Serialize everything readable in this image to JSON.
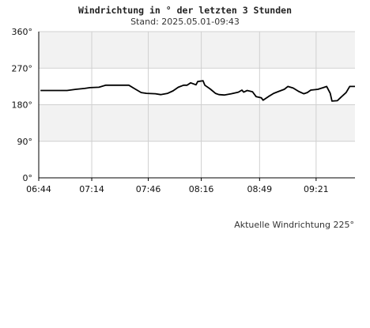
{
  "title": "Windrichtung in ° der letzten 3 Stunden",
  "subtitle": "Stand: 2025.05.01-09:43",
  "current_label": "Aktuelle Windrichtung 225°",
  "colors": {
    "band": "#f2f2f2",
    "grid": "#d0d0d0",
    "line": "#000000",
    "axis": "#000000"
  },
  "chart_data": {
    "type": "line",
    "title": "Windrichtung in ° der letzten 3 Stunden",
    "subtitle": "Stand: 2025.05.01-09:43",
    "ylim": [
      0,
      360
    ],
    "xlim": [
      "06:44",
      "09:43"
    ],
    "y_ticks": [
      0,
      90,
      180,
      270,
      360
    ],
    "y_tick_labels": [
      "0°",
      "90°",
      "180°",
      "270°",
      "360°"
    ],
    "x_tick_labels": [
      "06:44",
      "07:14",
      "07:46",
      "08:16",
      "08:49",
      "09:21"
    ],
    "grid": true,
    "series": [
      {
        "values": [
          [
            "06:45",
            215
          ],
          [
            "06:50",
            215
          ],
          [
            "06:55",
            215
          ],
          [
            "07:00",
            215
          ],
          [
            "07:05",
            218
          ],
          [
            "07:10",
            220
          ],
          [
            "07:13",
            222
          ],
          [
            "07:18",
            223
          ],
          [
            "07:22",
            228
          ],
          [
            "07:26",
            228
          ],
          [
            "07:30",
            228
          ],
          [
            "07:35",
            228
          ],
          [
            "07:38",
            220
          ],
          [
            "07:42",
            210
          ],
          [
            "07:45",
            208
          ],
          [
            "07:50",
            207
          ],
          [
            "07:53",
            205
          ],
          [
            "07:57",
            208
          ],
          [
            "08:00",
            214
          ],
          [
            "08:03",
            223
          ],
          [
            "08:06",
            228
          ],
          [
            "08:08",
            228
          ],
          [
            "08:10",
            234
          ],
          [
            "08:13",
            229
          ],
          [
            "08:14",
            237
          ],
          [
            "08:17",
            239
          ],
          [
            "08:18",
            228
          ],
          [
            "08:21",
            219
          ],
          [
            "08:24",
            208
          ],
          [
            "08:26",
            205
          ],
          [
            "08:29",
            204
          ],
          [
            "08:33",
            207
          ],
          [
            "08:37",
            211
          ],
          [
            "08:39",
            216
          ],
          [
            "08:40",
            211
          ],
          [
            "08:42",
            215
          ],
          [
            "08:45",
            212
          ],
          [
            "08:47",
            200
          ],
          [
            "08:50",
            197
          ],
          [
            "08:51",
            191
          ],
          [
            "08:54",
            200
          ],
          [
            "08:57",
            208
          ],
          [
            "09:00",
            213
          ],
          [
            "09:03",
            218
          ],
          [
            "09:05",
            225
          ],
          [
            "09:08",
            221
          ],
          [
            "09:11",
            213
          ],
          [
            "09:14",
            207
          ],
          [
            "09:16",
            210
          ],
          [
            "09:18",
            216
          ],
          [
            "09:22",
            218
          ],
          [
            "09:25",
            222
          ],
          [
            "09:27",
            225
          ],
          [
            "09:29",
            208
          ],
          [
            "09:30",
            189
          ],
          [
            "09:33",
            190
          ],
          [
            "09:35",
            198
          ],
          [
            "09:38",
            210
          ],
          [
            "09:40",
            225
          ],
          [
            "09:43",
            225
          ]
        ]
      }
    ]
  }
}
